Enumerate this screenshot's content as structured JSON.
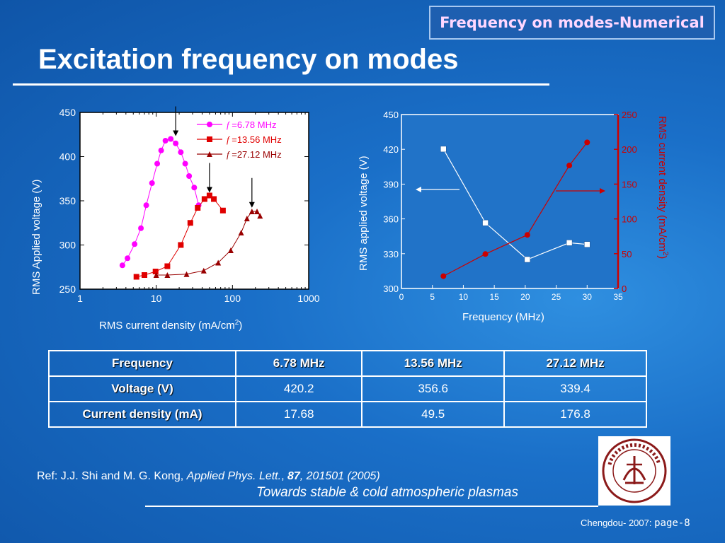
{
  "header": {
    "label": "Frequency on modes-Numerical"
  },
  "slide": {
    "title": "Excitation frequency on modes"
  },
  "chart_data": [
    {
      "type": "scatter",
      "xlabel": "RMS current density (mA/cm",
      "xlabel_sup": "2",
      "xlabel_end": ")",
      "ylabel": "RMS Applied voltage (V)",
      "xscale": "log",
      "xlim": [
        1,
        1000
      ],
      "ylim": [
        250,
        450
      ],
      "xticks": [
        1,
        10,
        100,
        1000
      ],
      "xtick_labels": [
        "1",
        "10",
        "100",
        "1000"
      ],
      "yticks": [
        250,
        300,
        350,
        400,
        450
      ],
      "ytick_labels": [
        "250",
        "300",
        "350",
        "400",
        "450"
      ],
      "legend_position": "top-right",
      "series": [
        {
          "name": "f =6.78 MHz",
          "legend_prefix": "f",
          "legend_text": " =6.78 MHz",
          "color": "#ff00ff",
          "marker": "circle",
          "x": [
            3.6,
            4.2,
            5.2,
            6.3,
            7.4,
            8.8,
            10.3,
            11.6,
            13.2,
            15.5,
            18.0,
            21.0,
            24.0,
            27.0,
            31.5,
            36.0
          ],
          "y": [
            277,
            285,
            301,
            319,
            345,
            370,
            392,
            407,
            418,
            420,
            415,
            405,
            392,
            378,
            365,
            345
          ]
        },
        {
          "name": "f =13.56 MHz",
          "legend_prefix": "f",
          "legend_text": " =13.56 MHz",
          "color": "#e00000",
          "marker": "square",
          "x": [
            5.5,
            7.0,
            9.8,
            14.0,
            21.0,
            28.0,
            35.0,
            43.0,
            50.0,
            57.0,
            75.0
          ],
          "y": [
            264,
            266,
            270,
            276,
            300,
            325,
            342,
            352,
            356,
            352,
            339
          ]
        },
        {
          "name": "f =27.12 MHz",
          "legend_prefix": "f",
          "legend_text": " =27.12 MHz",
          "color": "#990000",
          "marker": "triangle",
          "x": [
            10.0,
            14.0,
            25.0,
            42.0,
            65.0,
            95.0,
            130.0,
            155.0,
            180.0,
            210.0,
            230.0
          ],
          "y": [
            266,
            266,
            267,
            271,
            280,
            294,
            314,
            330,
            338,
            338,
            333
          ]
        }
      ],
      "arrow_targets": [
        {
          "x": 18.0,
          "y": 420
        },
        {
          "x": 50.0,
          "y": 356
        },
        {
          "x": 180.0,
          "y": 339
        }
      ]
    },
    {
      "type": "line",
      "xlabel": "Frequency (MHz)",
      "ylabel_left": "RMS applied voltage (V)",
      "ylabel_right": "RMS current density (mA/cm",
      "ylabel_right_sup": "2",
      "ylabel_right_end": ")",
      "xlim": [
        0,
        35
      ],
      "ylim_left": [
        300,
        450
      ],
      "ylim_right": [
        0,
        250
      ],
      "xticks": [
        0,
        5,
        10,
        15,
        20,
        25,
        30,
        35
      ],
      "xtick_labels": [
        "0",
        "5",
        "10",
        "15",
        "20",
        "25",
        "30",
        "35"
      ],
      "yticks_left": [
        300,
        330,
        360,
        390,
        420,
        450
      ],
      "ytick_labels_left": [
        "300",
        "330",
        "360",
        "390",
        "420",
        "450"
      ],
      "yticks_right": [
        0,
        50,
        100,
        150,
        200,
        250
      ],
      "ytick_labels_right": [
        "0",
        "50",
        "100",
        "150",
        "200",
        "250"
      ],
      "series": [
        {
          "axis": "left",
          "color": "#ffffff",
          "marker": "square",
          "x": [
            6.78,
            13.56,
            20.34,
            27.12,
            30.0
          ],
          "y": [
            420.2,
            356.6,
            325.0,
            339.4,
            338.0
          ]
        },
        {
          "axis": "right",
          "color": "#cc0000",
          "marker": "circle",
          "x": [
            6.78,
            13.56,
            20.34,
            27.12,
            30.0
          ],
          "y": [
            17.68,
            49.5,
            77.0,
            176.8,
            210.0
          ]
        }
      ]
    }
  ],
  "table": {
    "headers": [
      "Frequency",
      "6.78 MHz",
      "13.56 MHz",
      "27.12 MHz"
    ],
    "rows": [
      {
        "label": "Voltage (V)",
        "values": [
          "420.2",
          "356.6",
          "339.4"
        ]
      },
      {
        "label": "Current density (mA)",
        "values": [
          "17.68",
          "49.5",
          "176.8"
        ]
      }
    ]
  },
  "reference": {
    "prefix": "Ref: J.J. Shi and M. G. Kong, ",
    "journal": "Applied Phys. Lett.",
    "sep": ", ",
    "volume": "87",
    "tail": ", 201501 (2005)"
  },
  "tagline": "Towards stable & cold atmospheric plasmas",
  "logo": {
    "text": "DONGHUA 東華大學 UNIVERSITY · 1951 ·"
  },
  "footer": {
    "place": "Chengdou- 2007: ",
    "page": "page-8"
  },
  "colors": {
    "background": "#1a6fc8",
    "header_text": "#ffd7ff",
    "plot_bg": "#ffffff"
  }
}
